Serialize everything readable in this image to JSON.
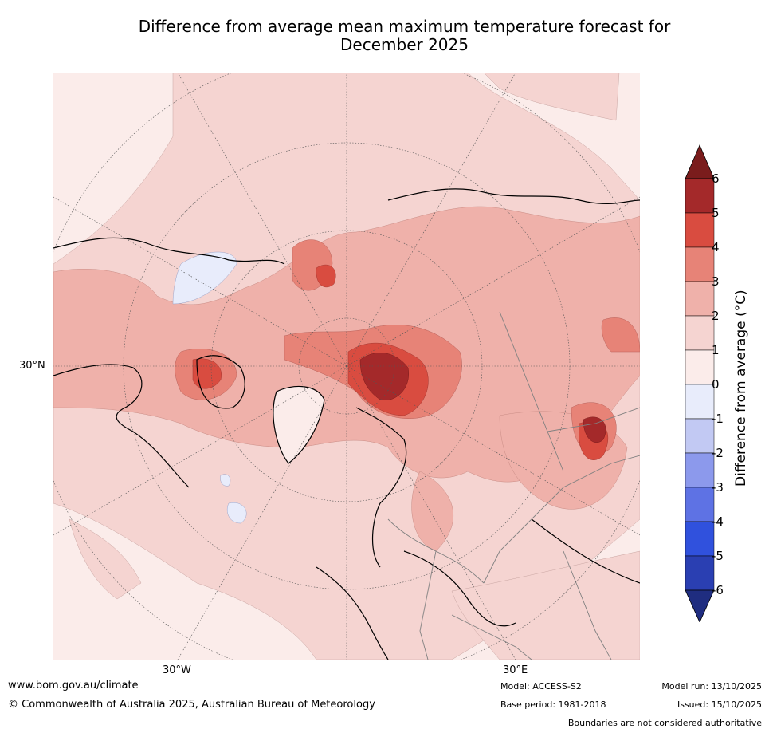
{
  "title_line1": "Difference from average mean maximum temperature forecast for",
  "title_line2": "December 2025",
  "map": {
    "lat_label": "30°N",
    "lon_labels": [
      "30°W",
      "30°E"
    ]
  },
  "colorbar": {
    "label": "Difference from average (°C)",
    "ticks": [
      "6",
      "5",
      "4",
      "3",
      "2",
      "1",
      "0",
      "-1",
      "-2",
      "-3",
      "-4",
      "-5",
      "-6"
    ],
    "colors": [
      "#a4292a",
      "#d94c40",
      "#e78377",
      "#efb1aa",
      "#f5d4d1",
      "#fbecea",
      "#e8ecfb",
      "#c2c9f3",
      "#8c99ec",
      "#5e72e4",
      "#3051dd",
      "#2a3fb2"
    ],
    "top_arrow": "#7a1c1c",
    "bottom_arrow": "#1f2d80"
  },
  "footer": {
    "url": "www.bom.gov.au/climate",
    "copyright": "© Commonwealth of Australia 2025, Australian Bureau of Meteorology",
    "model": "Model: ACCESS-S2",
    "base_period": "Base period: 1981-2018",
    "model_run": "Model run: 13/10/2025",
    "issued": "Issued: 15/10/2025",
    "disclaimer": "Boundaries are not considered authoritative"
  }
}
